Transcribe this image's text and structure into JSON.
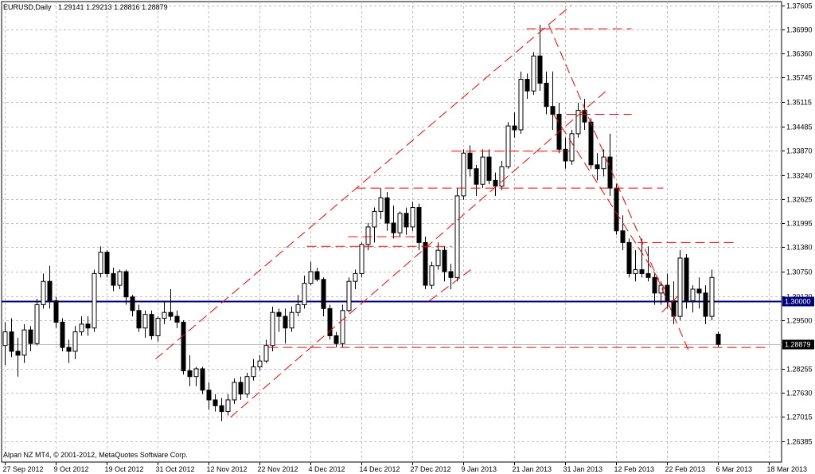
{
  "header": {
    "symbol_label": "EURUSD,Daily",
    "ohlc": "1.29141 1.29213 1.28816 1.28879"
  },
  "footer": {
    "copyright": "Alpari NZ MT4, © 2001-2012, MetaQuotes Software Corp."
  },
  "colors": {
    "background": "#ffffff",
    "grid": "#c0c0c0",
    "candle": "#000000",
    "trendline": "#ff0000",
    "level_line": "#000080",
    "bid_line": "#c0c0c0"
  },
  "chart_data": {
    "type": "candlestick",
    "ylim": [
      1.2585,
      1.377
    ],
    "y_ticks": [
      "1.37605",
      "1.36990",
      "1.36360",
      "1.35745",
      "1.35115",
      "1.34485",
      "1.33870",
      "1.33240",
      "1.32625",
      "1.31995",
      "1.31380",
      "1.30750",
      "1.30120",
      "1.29500",
      "1.28255",
      "1.27630",
      "1.27015",
      "1.26385"
    ],
    "x_tick_labels": [
      "27 Sep 2012",
      "9 Oct 2012",
      "19 Oct 2012",
      "31 Oct 2012",
      "12 Nov 2012",
      "22 Nov 2012",
      "4 Dec 2012",
      "14 Dec 2012",
      "27 Dec 2012",
      "9 Jan 2013",
      "21 Jan 2013",
      "31 Jan 2013",
      "12 Feb 2013",
      "22 Feb 2013",
      "6 Mar 2013",
      "18 Mar 2013"
    ],
    "x_tick_index": [
      0,
      8,
      16,
      24,
      32,
      40,
      48,
      56,
      64,
      72,
      80,
      88,
      96,
      104,
      112,
      120
    ],
    "horizontal_level": {
      "value": 1.3,
      "label": "1.30000"
    },
    "last_price": {
      "value": 1.28879,
      "label": "1.28879"
    },
    "candles": [
      {
        "o": 1.2885,
        "h": 1.2945,
        "l": 1.2835,
        "c": 1.292
      },
      {
        "o": 1.292,
        "h": 1.2955,
        "l": 1.2855,
        "c": 1.287
      },
      {
        "o": 1.287,
        "h": 1.2905,
        "l": 1.2805,
        "c": 1.286
      },
      {
        "o": 1.286,
        "h": 1.294,
        "l": 1.284,
        "c": 1.2925
      },
      {
        "o": 1.2925,
        "h": 1.2935,
        "l": 1.287,
        "c": 1.289
      },
      {
        "o": 1.289,
        "h": 1.3005,
        "l": 1.2885,
        "c": 1.299
      },
      {
        "o": 1.299,
        "h": 1.307,
        "l": 1.298,
        "c": 1.305
      },
      {
        "o": 1.305,
        "h": 1.309,
        "l": 1.298,
        "c": 1.3
      },
      {
        "o": 1.3,
        "h": 1.301,
        "l": 1.293,
        "c": 1.2945
      },
      {
        "o": 1.2945,
        "h": 1.2955,
        "l": 1.287,
        "c": 1.288
      },
      {
        "o": 1.288,
        "h": 1.29,
        "l": 1.284,
        "c": 1.287
      },
      {
        "o": 1.287,
        "h": 1.2935,
        "l": 1.285,
        "c": 1.292
      },
      {
        "o": 1.292,
        "h": 1.296,
        "l": 1.291,
        "c": 1.294
      },
      {
        "o": 1.294,
        "h": 1.296,
        "l": 1.291,
        "c": 1.293
      },
      {
        "o": 1.293,
        "h": 1.308,
        "l": 1.292,
        "c": 1.307
      },
      {
        "o": 1.307,
        "h": 1.314,
        "l": 1.306,
        "c": 1.3125
      },
      {
        "o": 1.3125,
        "h": 1.313,
        "l": 1.306,
        "c": 1.307
      },
      {
        "o": 1.307,
        "h": 1.3085,
        "l": 1.3025,
        "c": 1.304
      },
      {
        "o": 1.304,
        "h": 1.308,
        "l": 1.303,
        "c": 1.3075
      },
      {
        "o": 1.3075,
        "h": 1.308,
        "l": 1.299,
        "c": 1.301
      },
      {
        "o": 1.301,
        "h": 1.3015,
        "l": 1.296,
        "c": 1.2975
      },
      {
        "o": 1.2975,
        "h": 1.299,
        "l": 1.292,
        "c": 1.293
      },
      {
        "o": 1.293,
        "h": 1.2975,
        "l": 1.2905,
        "c": 1.2965
      },
      {
        "o": 1.2965,
        "h": 1.2975,
        "l": 1.29,
        "c": 1.291
      },
      {
        "o": 1.291,
        "h": 1.296,
        "l": 1.2895,
        "c": 1.2955
      },
      {
        "o": 1.2955,
        "h": 1.3,
        "l": 1.294,
        "c": 1.297
      },
      {
        "o": 1.297,
        "h": 1.303,
        "l": 1.295,
        "c": 1.296
      },
      {
        "o": 1.296,
        "h": 1.2975,
        "l": 1.293,
        "c": 1.2945
      },
      {
        "o": 1.2945,
        "h": 1.295,
        "l": 1.281,
        "c": 1.282
      },
      {
        "o": 1.282,
        "h": 1.286,
        "l": 1.278,
        "c": 1.2805
      },
      {
        "o": 1.2805,
        "h": 1.283,
        "l": 1.278,
        "c": 1.2825
      },
      {
        "o": 1.2825,
        "h": 1.283,
        "l": 1.276,
        "c": 1.277
      },
      {
        "o": 1.277,
        "h": 1.279,
        "l": 1.272,
        "c": 1.2745
      },
      {
        "o": 1.2745,
        "h": 1.276,
        "l": 1.2715,
        "c": 1.273
      },
      {
        "o": 1.273,
        "h": 1.275,
        "l": 1.269,
        "c": 1.2715
      },
      {
        "o": 1.2715,
        "h": 1.276,
        "l": 1.2705,
        "c": 1.2745
      },
      {
        "o": 1.2745,
        "h": 1.28,
        "l": 1.2735,
        "c": 1.279
      },
      {
        "o": 1.279,
        "h": 1.2805,
        "l": 1.2745,
        "c": 1.276
      },
      {
        "o": 1.276,
        "h": 1.2815,
        "l": 1.275,
        "c": 1.2805
      },
      {
        "o": 1.2805,
        "h": 1.285,
        "l": 1.2795,
        "c": 1.283
      },
      {
        "o": 1.283,
        "h": 1.286,
        "l": 1.282,
        "c": 1.2845
      },
      {
        "o": 1.2845,
        "h": 1.29,
        "l": 1.284,
        "c": 1.2885
      },
      {
        "o": 1.2885,
        "h": 1.2985,
        "l": 1.287,
        "c": 1.297
      },
      {
        "o": 1.297,
        "h": 1.298,
        "l": 1.292,
        "c": 1.296
      },
      {
        "o": 1.296,
        "h": 1.298,
        "l": 1.289,
        "c": 1.293
      },
      {
        "o": 1.293,
        "h": 1.2985,
        "l": 1.292,
        "c": 1.297
      },
      {
        "o": 1.297,
        "h": 1.3015,
        "l": 1.296,
        "c": 1.299
      },
      {
        "o": 1.299,
        "h": 1.3065,
        "l": 1.298,
        "c": 1.3045
      },
      {
        "o": 1.3045,
        "h": 1.31,
        "l": 1.304,
        "c": 1.3075
      },
      {
        "o": 1.3075,
        "h": 1.3085,
        "l": 1.305,
        "c": 1.3055
      },
      {
        "o": 1.3055,
        "h": 1.306,
        "l": 1.296,
        "c": 1.298
      },
      {
        "o": 1.298,
        "h": 1.299,
        "l": 1.29,
        "c": 1.291
      },
      {
        "o": 1.291,
        "h": 1.292,
        "l": 1.288,
        "c": 1.289
      },
      {
        "o": 1.289,
        "h": 1.299,
        "l": 1.288,
        "c": 1.2975
      },
      {
        "o": 1.2975,
        "h": 1.306,
        "l": 1.297,
        "c": 1.305
      },
      {
        "o": 1.305,
        "h": 1.308,
        "l": 1.303,
        "c": 1.307
      },
      {
        "o": 1.307,
        "h": 1.315,
        "l": 1.306,
        "c": 1.3145
      },
      {
        "o": 1.3145,
        "h": 1.32,
        "l": 1.313,
        "c": 1.319
      },
      {
        "o": 1.319,
        "h": 1.324,
        "l": 1.315,
        "c": 1.323
      },
      {
        "o": 1.323,
        "h": 1.329,
        "l": 1.321,
        "c": 1.3265
      },
      {
        "o": 1.3265,
        "h": 1.328,
        "l": 1.318,
        "c": 1.32
      },
      {
        "o": 1.32,
        "h": 1.3245,
        "l": 1.316,
        "c": 1.3175
      },
      {
        "o": 1.3175,
        "h": 1.323,
        "l": 1.3165,
        "c": 1.3225
      },
      {
        "o": 1.3225,
        "h": 1.324,
        "l": 1.317,
        "c": 1.319
      },
      {
        "o": 1.319,
        "h": 1.3255,
        "l": 1.318,
        "c": 1.324
      },
      {
        "o": 1.324,
        "h": 1.325,
        "l": 1.313,
        "c": 1.315
      },
      {
        "o": 1.315,
        "h": 1.3165,
        "l": 1.303,
        "c": 1.304
      },
      {
        "o": 1.304,
        "h": 1.31,
        "l": 1.303,
        "c": 1.309
      },
      {
        "o": 1.309,
        "h": 1.315,
        "l": 1.308,
        "c": 1.313
      },
      {
        "o": 1.313,
        "h": 1.314,
        "l": 1.305,
        "c": 1.3075
      },
      {
        "o": 1.3075,
        "h": 1.3095,
        "l": 1.303,
        "c": 1.306
      },
      {
        "o": 1.306,
        "h": 1.329,
        "l": 1.305,
        "c": 1.327
      },
      {
        "o": 1.327,
        "h": 1.339,
        "l": 1.326,
        "c": 1.338
      },
      {
        "o": 1.338,
        "h": 1.34,
        "l": 1.332,
        "c": 1.334
      },
      {
        "o": 1.334,
        "h": 1.335,
        "l": 1.327,
        "c": 1.33
      },
      {
        "o": 1.33,
        "h": 1.339,
        "l": 1.329,
        "c": 1.337
      },
      {
        "o": 1.337,
        "h": 1.339,
        "l": 1.33,
        "c": 1.331
      },
      {
        "o": 1.331,
        "h": 1.333,
        "l": 1.327,
        "c": 1.3295
      },
      {
        "o": 1.3295,
        "h": 1.336,
        "l": 1.3285,
        "c": 1.3345
      },
      {
        "o": 1.3345,
        "h": 1.346,
        "l": 1.334,
        "c": 1.345
      },
      {
        "o": 1.345,
        "h": 1.3485,
        "l": 1.342,
        "c": 1.344
      },
      {
        "o": 1.344,
        "h": 1.359,
        "l": 1.343,
        "c": 1.357
      },
      {
        "o": 1.357,
        "h": 1.3585,
        "l": 1.352,
        "c": 1.354
      },
      {
        "o": 1.354,
        "h": 1.364,
        "l": 1.353,
        "c": 1.363
      },
      {
        "o": 1.363,
        "h": 1.371,
        "l": 1.354,
        "c": 1.356
      },
      {
        "o": 1.356,
        "h": 1.359,
        "l": 1.348,
        "c": 1.35
      },
      {
        "o": 1.35,
        "h": 1.359,
        "l": 1.344,
        "c": 1.348
      },
      {
        "o": 1.348,
        "h": 1.351,
        "l": 1.338,
        "c": 1.339
      },
      {
        "o": 1.339,
        "h": 1.342,
        "l": 1.334,
        "c": 1.336
      },
      {
        "o": 1.336,
        "h": 1.344,
        "l": 1.335,
        "c": 1.343
      },
      {
        "o": 1.343,
        "h": 1.351,
        "l": 1.342,
        "c": 1.349
      },
      {
        "o": 1.349,
        "h": 1.352,
        "l": 1.344,
        "c": 1.346
      },
      {
        "o": 1.346,
        "h": 1.347,
        "l": 1.334,
        "c": 1.335
      },
      {
        "o": 1.335,
        "h": 1.338,
        "l": 1.331,
        "c": 1.334
      },
      {
        "o": 1.334,
        "h": 1.339,
        "l": 1.332,
        "c": 1.337
      },
      {
        "o": 1.337,
        "h": 1.343,
        "l": 1.327,
        "c": 1.329
      },
      {
        "o": 1.329,
        "h": 1.33,
        "l": 1.317,
        "c": 1.318
      },
      {
        "o": 1.318,
        "h": 1.322,
        "l": 1.313,
        "c": 1.315
      },
      {
        "o": 1.315,
        "h": 1.316,
        "l": 1.306,
        "c": 1.307
      },
      {
        "o": 1.307,
        "h": 1.313,
        "l": 1.305,
        "c": 1.308
      },
      {
        "o": 1.308,
        "h": 1.316,
        "l": 1.306,
        "c": 1.307
      },
      {
        "o": 1.307,
        "h": 1.314,
        "l": 1.305,
        "c": 1.306
      },
      {
        "o": 1.306,
        "h": 1.307,
        "l": 1.299,
        "c": 1.302
      },
      {
        "o": 1.302,
        "h": 1.305,
        "l": 1.299,
        "c": 1.304
      },
      {
        "o": 1.304,
        "h": 1.307,
        "l": 1.298,
        "c": 1.3
      },
      {
        "o": 1.3,
        "h": 1.305,
        "l": 1.294,
        "c": 1.296
      },
      {
        "o": 1.296,
        "h": 1.313,
        "l": 1.295,
        "c": 1.311
      },
      {
        "o": 1.311,
        "h": 1.312,
        "l": 1.298,
        "c": 1.3
      },
      {
        "o": 1.3,
        "h": 1.304,
        "l": 1.297,
        "c": 1.303
      },
      {
        "o": 1.303,
        "h": 1.306,
        "l": 1.298,
        "c": 1.302
      },
      {
        "o": 1.302,
        "h": 1.304,
        "l": 1.294,
        "c": 1.296
      },
      {
        "o": 1.296,
        "h": 1.308,
        "l": 1.295,
        "c": 1.306
      },
      {
        "o": 1.2914,
        "h": 1.2921,
        "l": 1.2882,
        "c": 1.2888
      }
    ],
    "trendlines": [
      {
        "i1": 9.5,
        "p1": 1.285,
        "i2": 35.6,
        "p2": 1.376
      },
      {
        "i1": 14.2,
        "p1": 1.27,
        "i2": 37.8,
        "p2": 1.354
      },
      {
        "i1": 26.7,
        "p1": 1.3,
        "i2": 29.3,
        "p2": 1.308
      },
      {
        "i1": 34.2,
        "p1": 1.371,
        "i2": 43.0,
        "p2": 1.287
      },
      {
        "i1": 34.5,
        "p1": 1.348,
        "i2": 41.5,
        "p2": 1.303
      },
      {
        "i1": 19.0,
        "p1": 1.314,
        "i2": 28.1,
        "p2": 1.314
      },
      {
        "i1": 22.1,
        "p1": 1.329,
        "i2": 41.4,
        "p2": 1.329
      },
      {
        "i1": 21.6,
        "p1": 1.3165,
        "i2": 25.8,
        "p2": 1.3165
      },
      {
        "i1": 28.1,
        "p1": 1.3385,
        "i2": 35.5,
        "p2": 1.3385
      },
      {
        "i1": 35.3,
        "p1": 1.348,
        "i2": 39.4,
        "p2": 1.348
      },
      {
        "i1": 32.8,
        "p1": 1.37,
        "i2": 39.4,
        "p2": 1.37
      },
      {
        "i1": 16.6,
        "p1": 1.288,
        "i2": 48.0,
        "p2": 1.288
      },
      {
        "i1": 39.8,
        "p1": 1.315,
        "i2": 45.9,
        "p2": 1.315
      },
      {
        "i1": 41.3,
        "p1": 1.297,
        "i2": 42.5,
        "p2": 1.302
      }
    ]
  }
}
